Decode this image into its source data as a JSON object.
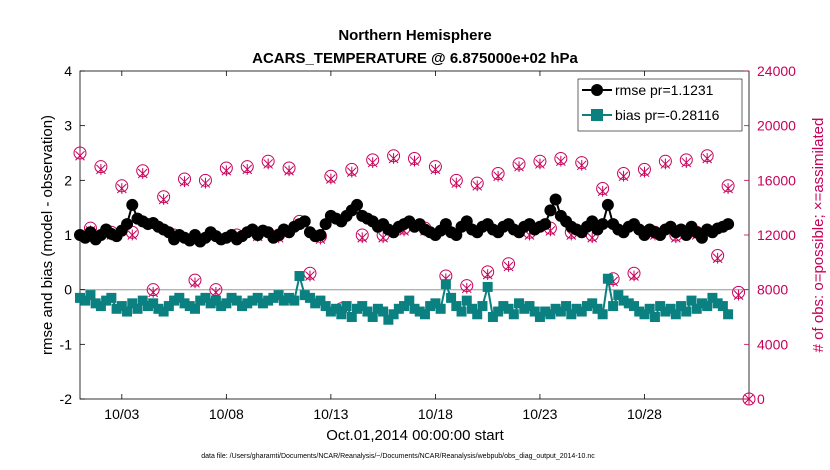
{
  "chart_data": {
    "type": "line",
    "title": "Northern Hemisphere",
    "subtitle": "ACARS_TEMPERATURE @ 6.875000e+02 hPa",
    "xlabel": "Oct.01,2014 00:00:00 start",
    "ylabel": "rmse and bias (model - observation)",
    "y2label": "# of obs: o=possible; ×=assimilated",
    "xlim": [
      1,
      33
    ],
    "ylim": [
      -2,
      4
    ],
    "y2lim": [
      0,
      24000
    ],
    "xticks": [
      3,
      8,
      13,
      18,
      23,
      28
    ],
    "xtick_labels": [
      "10/03",
      "10/08",
      "10/13",
      "10/18",
      "10/23",
      "10/28"
    ],
    "yticks": [
      "-2",
      "-1",
      "0",
      "1",
      "2",
      "3",
      "4"
    ],
    "y2ticks": [
      "0",
      "4000",
      "8000",
      "12000",
      "16000",
      "20000",
      "24000"
    ],
    "footnote": "data file: /Users/gharamti/Documents/NCAR/Reanalysis/~/Documents/NCAR/Reanalysis/webpub/obs_diag_output_2014-10.nc",
    "legend": {
      "position": "top-right",
      "rmse_label": "rmse pr=1.1231",
      "bias_label": "bias pr=-0.28116"
    },
    "colors": {
      "rmse": "#000000",
      "bias": "#0a8080",
      "obs": "#c8005a",
      "zero_line": "#b3b3b3"
    },
    "series": [
      {
        "name": "rmse",
        "x": [
          1.0,
          1.25,
          1.5,
          1.75,
          2.0,
          2.25,
          2.5,
          2.75,
          3.0,
          3.25,
          3.5,
          3.75,
          4.0,
          4.25,
          4.5,
          4.75,
          5.0,
          5.25,
          5.5,
          5.75,
          6.0,
          6.25,
          6.5,
          6.75,
          7.0,
          7.25,
          7.5,
          7.75,
          8.0,
          8.25,
          8.5,
          8.75,
          9.0,
          9.25,
          9.5,
          9.75,
          10.0,
          10.25,
          10.5,
          10.75,
          11.0,
          11.25,
          11.5,
          11.75,
          12.0,
          12.25,
          12.5,
          12.75,
          13.0,
          13.25,
          13.5,
          13.75,
          14.0,
          14.25,
          14.5,
          14.75,
          15.0,
          15.25,
          15.5,
          15.75,
          16.0,
          16.25,
          16.5,
          16.75,
          17.0,
          17.25,
          17.5,
          17.75,
          18.0,
          18.25,
          18.5,
          18.75,
          19.0,
          19.25,
          19.5,
          19.75,
          20.0,
          20.25,
          20.5,
          20.75,
          21.0,
          21.25,
          21.5,
          21.75,
          22.0,
          22.25,
          22.5,
          22.75,
          23.0,
          23.25,
          23.5,
          23.75,
          24.0,
          24.25,
          24.5,
          24.75,
          25.0,
          25.25,
          25.5,
          25.75,
          26.0,
          26.25,
          26.5,
          26.75,
          27.0,
          27.25,
          27.5,
          27.75,
          28.0,
          28.25,
          28.5,
          28.75,
          29.0,
          29.25,
          29.5,
          29.75,
          30.0,
          30.25,
          30.5,
          30.75,
          31.0,
          31.25,
          31.5,
          31.75,
          32.0
        ],
        "values": [
          1.0,
          0.95,
          1.05,
          0.92,
          1.0,
          1.1,
          1.02,
          0.98,
          1.08,
          1.2,
          1.55,
          1.3,
          1.25,
          1.2,
          1.22,
          1.15,
          1.1,
          1.05,
          0.92,
          1.0,
          0.95,
          0.9,
          1.0,
          0.88,
          0.95,
          1.05,
          0.98,
          0.92,
          0.95,
          1.0,
          0.92,
          0.98,
          1.05,
          1.1,
          1.0,
          1.08,
          1.05,
          0.95,
          1.0,
          1.1,
          1.05,
          1.15,
          1.2,
          1.25,
          1.05,
          0.98,
          1.0,
          1.2,
          1.35,
          1.3,
          1.25,
          1.35,
          1.45,
          1.55,
          1.35,
          1.3,
          1.25,
          1.15,
          1.2,
          1.1,
          1.05,
          1.15,
          1.2,
          1.25,
          1.15,
          1.2,
          1.1,
          1.05,
          1.0,
          1.08,
          1.2,
          1.05,
          1.0,
          1.15,
          1.25,
          1.1,
          1.05,
          1.15,
          1.2,
          1.1,
          1.05,
          1.15,
          1.2,
          1.1,
          1.05,
          1.15,
          1.2,
          1.1,
          1.15,
          1.2,
          1.45,
          1.65,
          1.35,
          1.25,
          1.15,
          1.1,
          1.05,
          1.15,
          1.25,
          1.1,
          1.2,
          1.55,
          1.2,
          1.1,
          1.05,
          1.15,
          1.2,
          1.1,
          1.0,
          1.1,
          1.05,
          1.0,
          1.1,
          1.15,
          1.05,
          1.1,
          1.0,
          1.15,
          1.05,
          0.95,
          1.1,
          1.05,
          1.12,
          1.15,
          1.2
        ]
      },
      {
        "name": "bias",
        "x": [
          1.0,
          1.25,
          1.5,
          1.75,
          2.0,
          2.25,
          2.5,
          2.75,
          3.0,
          3.25,
          3.5,
          3.75,
          4.0,
          4.25,
          4.5,
          4.75,
          5.0,
          5.25,
          5.5,
          5.75,
          6.0,
          6.25,
          6.5,
          6.75,
          7.0,
          7.25,
          7.5,
          7.75,
          8.0,
          8.25,
          8.5,
          8.75,
          9.0,
          9.25,
          9.5,
          9.75,
          10.0,
          10.25,
          10.5,
          10.75,
          11.0,
          11.25,
          11.5,
          11.75,
          12.0,
          12.25,
          12.5,
          12.75,
          13.0,
          13.25,
          13.5,
          13.75,
          14.0,
          14.25,
          14.5,
          14.75,
          15.0,
          15.25,
          15.5,
          15.75,
          16.0,
          16.25,
          16.5,
          16.75,
          17.0,
          17.25,
          17.5,
          17.75,
          18.0,
          18.25,
          18.5,
          18.75,
          19.0,
          19.25,
          19.5,
          19.75,
          20.0,
          20.25,
          20.5,
          20.75,
          21.0,
          21.25,
          21.5,
          21.75,
          22.0,
          22.25,
          22.5,
          22.75,
          23.0,
          23.25,
          23.5,
          23.75,
          24.0,
          24.25,
          24.5,
          24.75,
          25.0,
          25.25,
          25.5,
          25.75,
          26.0,
          26.25,
          26.5,
          26.75,
          27.0,
          27.25,
          27.5,
          27.75,
          28.0,
          28.25,
          28.5,
          28.75,
          29.0,
          29.25,
          29.5,
          29.75,
          30.0,
          30.25,
          30.5,
          30.75,
          31.0,
          31.25,
          31.5,
          31.75,
          32.0
        ],
        "values": [
          -0.15,
          -0.2,
          -0.1,
          -0.25,
          -0.3,
          -0.2,
          -0.15,
          -0.35,
          -0.3,
          -0.4,
          -0.25,
          -0.35,
          -0.2,
          -0.3,
          -0.25,
          -0.35,
          -0.4,
          -0.3,
          -0.2,
          -0.15,
          -0.25,
          -0.3,
          -0.35,
          -0.2,
          -0.15,
          -0.25,
          -0.2,
          -0.3,
          -0.25,
          -0.15,
          -0.2,
          -0.3,
          -0.25,
          -0.2,
          -0.15,
          -0.25,
          -0.2,
          -0.15,
          -0.1,
          -0.2,
          -0.15,
          -0.2,
          0.25,
          -0.1,
          -0.15,
          -0.25,
          -0.2,
          -0.3,
          -0.4,
          -0.35,
          -0.45,
          -0.3,
          -0.5,
          -0.35,
          -0.3,
          -0.4,
          -0.5,
          -0.35,
          -0.4,
          -0.55,
          -0.45,
          -0.35,
          -0.3,
          -0.2,
          -0.35,
          -0.4,
          -0.45,
          -0.3,
          -0.25,
          -0.35,
          0.1,
          -0.15,
          -0.3,
          -0.4,
          -0.2,
          -0.35,
          -0.45,
          -0.3,
          0.05,
          -0.5,
          -0.4,
          -0.3,
          -0.35,
          -0.45,
          -0.25,
          -0.35,
          -0.3,
          -0.4,
          -0.5,
          -0.4,
          -0.45,
          -0.35,
          -0.4,
          -0.3,
          -0.45,
          -0.35,
          -0.4,
          -0.3,
          -0.25,
          -0.35,
          -0.45,
          0.2,
          -0.3,
          -0.1,
          -0.2,
          -0.25,
          -0.3,
          -0.4,
          -0.45,
          -0.35,
          -0.5,
          -0.3,
          -0.4,
          -0.35,
          -0.45,
          -0.3,
          -0.4,
          -0.2,
          -0.35,
          -0.25,
          -0.3,
          -0.15,
          -0.25,
          -0.3,
          -0.45
        ]
      },
      {
        "name": "obs_possible",
        "x": [
          1.0,
          1.5,
          2.0,
          2.5,
          3.0,
          3.5,
          4.0,
          4.5,
          5.0,
          5.5,
          6.0,
          6.5,
          7.0,
          7.5,
          8.0,
          8.5,
          9.0,
          9.5,
          10.0,
          10.5,
          11.0,
          11.5,
          12.0,
          12.5,
          13.0,
          13.5,
          14.0,
          14.5,
          15.0,
          15.5,
          16.0,
          16.5,
          17.0,
          17.5,
          18.0,
          18.5,
          19.0,
          19.5,
          20.0,
          20.5,
          21.0,
          21.5,
          22.0,
          22.5,
          23.0,
          23.5,
          24.0,
          24.5,
          25.0,
          25.5,
          26.0,
          26.5,
          27.0,
          27.5,
          28.0,
          28.5,
          29.0,
          29.5,
          30.0,
          30.5,
          31.0,
          31.5,
          32.0,
          32.5,
          33.0
        ],
        "values": [
          18000,
          12500,
          17000,
          12200,
          15600,
          12200,
          16700,
          8000,
          14800,
          12000,
          16100,
          8700,
          16000,
          8000,
          16900,
          12000,
          17000,
          12100,
          17400,
          12000,
          16900,
          13000,
          9200,
          11900,
          16300,
          6600,
          16800,
          12000,
          17500,
          12000,
          17800,
          12500,
          17600,
          12500,
          17000,
          9000,
          16000,
          8300,
          15800,
          9300,
          16500,
          9900,
          17200,
          12200,
          17400,
          12500,
          17600,
          12200,
          17300,
          12000,
          15400,
          8800,
          16500,
          9200,
          16800,
          12200,
          17400,
          12000,
          17500,
          12200,
          17800,
          10500,
          15600,
          7800,
          0
        ]
      },
      {
        "name": "obs_assimilated",
        "x": [
          1.0,
          1.5,
          2.0,
          2.5,
          3.0,
          3.5,
          4.0,
          4.5,
          5.0,
          5.5,
          6.0,
          6.5,
          7.0,
          7.5,
          8.0,
          8.5,
          9.0,
          9.5,
          10.0,
          10.5,
          11.0,
          11.5,
          12.0,
          12.5,
          13.0,
          13.5,
          14.0,
          14.5,
          15.0,
          15.5,
          16.0,
          16.5,
          17.0,
          17.5,
          18.0,
          18.5,
          19.0,
          19.5,
          20.0,
          20.5,
          21.0,
          21.5,
          22.0,
          22.5,
          23.0,
          23.5,
          24.0,
          24.5,
          25.0,
          25.5,
          26.0,
          26.5,
          27.0,
          27.5,
          28.0,
          28.5,
          29.0,
          29.5,
          30.0,
          30.5,
          31.0,
          31.5,
          32.0,
          32.5,
          33.0
        ],
        "values": [
          17800,
          12300,
          16800,
          12000,
          15400,
          12000,
          16500,
          7800,
          14600,
          11800,
          15900,
          8500,
          15800,
          7800,
          16700,
          11800,
          16800,
          11900,
          17200,
          11800,
          16700,
          12800,
          9000,
          11700,
          16100,
          6400,
          16600,
          11800,
          17300,
          11800,
          17600,
          12300,
          17400,
          12300,
          16800,
          8800,
          15800,
          8100,
          15600,
          9100,
          16300,
          9700,
          17000,
          12000,
          17200,
          12300,
          17400,
          12000,
          17100,
          11800,
          15200,
          8600,
          16300,
          9000,
          16600,
          12000,
          17200,
          11800,
          17300,
          12000,
          17600,
          10300,
          15400,
          7600,
          0
        ]
      }
    ]
  }
}
